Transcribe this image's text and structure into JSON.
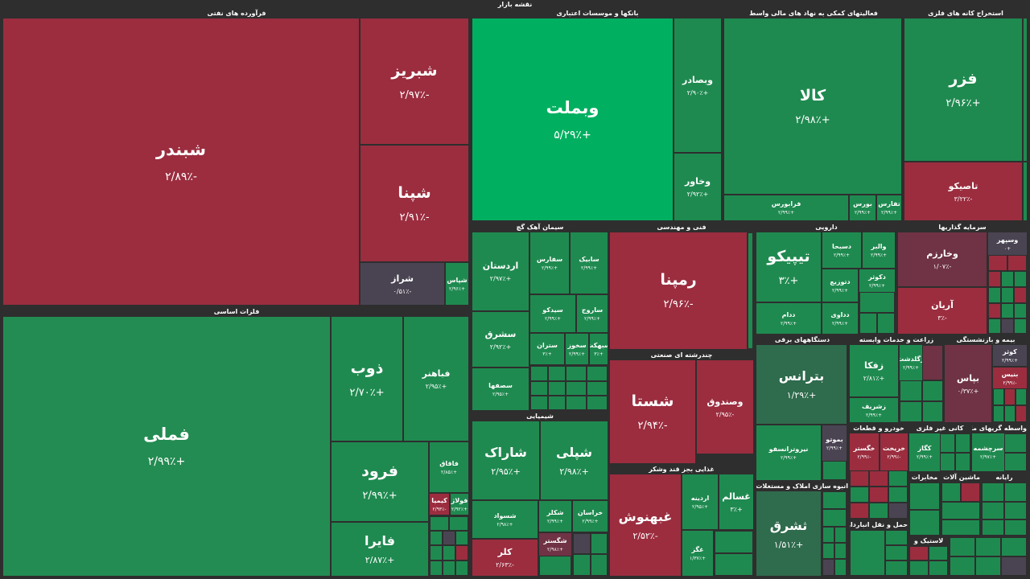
{
  "title": "نقشه بازار",
  "sectors": {
    "oil": "فرآورده های نفتی",
    "banks": "بانکها و موسسات اعتباری",
    "financial": "فعالیتهای کمکی به نهاد های مالی واسط",
    "metal_mining": "استخراج کانه های فلزی",
    "basic_metals": "فلزات اساسی",
    "cement": "سیمان آهک گچ",
    "engineering": "فنی و مهندسی",
    "pharma": "دارویی",
    "investments": "سرمایه گذاریها",
    "multi_industry": "چندرشته ای صنعتی",
    "chemicals": "شیمیایی",
    "food": "غذایی بجز قند وشکر",
    "electric": "دستگاههای برقی",
    "agriculture": "زراعت و خدمات وابسته",
    "insurance": "بیمه و بازنشستگی",
    "auto": "خودرو و قطعات",
    "nonmetal_minerals": "کانی غیر فلزی",
    "financial_intermediaries": "واسطه گریهای مالی و",
    "real_estate": "انبوه سازی املاک و مستغلات",
    "telecom": "مخابرات",
    "machinery": "ماشین آلات و",
    "computer": "رایانه",
    "transport": "حمل و نقل انبارداری و",
    "rubber": "لاستیک و"
  },
  "tiles": {
    "shabandar": {
      "symbol": "شبندر",
      "change": "-۲/۸۹٪"
    },
    "shabriz": {
      "symbol": "شبریز",
      "change": "-۲/۹۷٪"
    },
    "shepna": {
      "symbol": "شپنا",
      "change": "-۲/۹۱٪"
    },
    "shiraz": {
      "symbol": "شراز",
      "change": "-۰/۵۱٪"
    },
    "shepas": {
      "symbol": "شپاس",
      "change": "+۲/۹۶٪"
    },
    "vabmellat": {
      "symbol": "وبملت",
      "change": "+۵/۲۹٪"
    },
    "vebsader": {
      "symbol": "وبصادر",
      "change": "+۲/۹۰٪"
    },
    "vkhavar": {
      "symbol": "وخاور",
      "change": "+۲/۹۲٪"
    },
    "kala": {
      "symbol": "کالا",
      "change": "+۲/۹۸٪"
    },
    "farabourse": {
      "symbol": "فرابورس",
      "change": "+۲/۹۹٪"
    },
    "bourse": {
      "symbol": "بورس",
      "change": "+۲/۹۹٪"
    },
    "tafars": {
      "symbol": "تفارس",
      "change": "+۲/۹۹٪"
    },
    "fazar": {
      "symbol": "فزر",
      "change": "+۲/۹۶٪"
    },
    "tasiko": {
      "symbol": "تاصیکو",
      "change": "-۳/۲۲٪"
    },
    "fameli": {
      "symbol": "فملی",
      "change": "+۲/۹۹٪"
    },
    "zob": {
      "symbol": "ذوب",
      "change": "+۲/۷۰٪"
    },
    "fabahonar": {
      "symbol": "فباهنر",
      "change": "+۲/۹۵٪"
    },
    "foroud": {
      "symbol": "فرود",
      "change": "+۲/۹۹٪"
    },
    "faghagh": {
      "symbol": "فاقاق",
      "change": "+۲/۸۵٪"
    },
    "faira": {
      "symbol": "فایرا",
      "change": "+۲/۸۷٪"
    },
    "kimia": {
      "symbol": "کیمیا",
      "change": "-۲/۹۳٪"
    },
    "folaz": {
      "symbol": "فولاژ",
      "change": "+۲/۹۲٪"
    },
    "ardestan": {
      "symbol": "اردستان",
      "change": "+۲/۹۷٪"
    },
    "sefars": {
      "symbol": "سفارس",
      "change": "+۲/۹۹٪"
    },
    "sabik": {
      "symbol": "سابیک",
      "change": "+۲/۹۹٪"
    },
    "sesharq": {
      "symbol": "سشرق",
      "change": "+۲/۹۲٪"
    },
    "sidko": {
      "symbol": "سیدکو",
      "change": "+۲/۹۹٪"
    },
    "sarouj": {
      "symbol": "ساروج",
      "change": "+۲/۹۹٪"
    },
    "sesofaha": {
      "symbol": "سصفها",
      "change": "+۲/۹۵٪"
    },
    "setran": {
      "symbol": "ستران",
      "change": "+۳٪"
    },
    "sekhoz": {
      "symbol": "سخوز",
      "change": "+۲/۹۹٪"
    },
    "sebhekt": {
      "symbol": "سبهکت",
      "change": "+۳٪"
    },
    "ramepna": {
      "symbol": "رمپنا",
      "change": "-۲/۹۶٪"
    },
    "tipiko": {
      "symbol": "تیپیکو",
      "change": "+۳٪"
    },
    "dasobha": {
      "symbol": "دسبحا",
      "change": "+۲/۹۹٪"
    },
    "valber": {
      "symbol": "والبر",
      "change": "+۲/۹۹٪"
    },
    "dalor": {
      "symbol": "دلر",
      "change": "+۲/۹۹٪"
    },
    "doturiz": {
      "symbol": "دتوزیع",
      "change": "+۲/۹۹٪"
    },
    "dkosar": {
      "symbol": "دکوثر",
      "change": "+۲/۹۹٪"
    },
    "dadam": {
      "symbol": "ددام",
      "change": "+۲/۹۹٪"
    },
    "dadarou": {
      "symbol": "دداوی",
      "change": "+۲/۹۹٪"
    },
    "vkharazm": {
      "symbol": "وخارزم",
      "change": "-۱/۰۷٪"
    },
    "arian": {
      "symbol": "آریان",
      "change": "-۳٪"
    },
    "vesapa": {
      "symbol": "وسپهر",
      "change": "+۰"
    },
    "shasta": {
      "symbol": "شستا",
      "change": "-۲/۹۴٪"
    },
    "vesandough": {
      "symbol": "وصندوق",
      "change": "-۲/۹۵٪"
    },
    "sharak": {
      "symbol": "شاراک",
      "change": "+۲/۹۵٪"
    },
    "shepli": {
      "symbol": "شپلی",
      "change": "+۲/۹۸٪"
    },
    "shesavad": {
      "symbol": "شسواد",
      "change": "+۲/۹۸٪"
    },
    "shakol": {
      "symbol": "شکلر",
      "change": "+۲/۹۹٪"
    },
    "khorasan": {
      "symbol": "خراسان",
      "change": "+۲/۹۹٪"
    },
    "kalar": {
      "symbol": "کلر",
      "change": "-۲/۶۳٪"
    },
    "shegostar": {
      "symbol": "شگستر",
      "change": "+۲/۹۸٪"
    },
    "ghebnoush": {
      "symbol": "غبهنوش",
      "change": "-۲/۵۲٪"
    },
    "ardineh": {
      "symbol": "اردینه",
      "change": "+۲/۹۵٪"
    },
    "ghesalam": {
      "symbol": "غسالم",
      "change": "+۳٪"
    },
    "ghegaz": {
      "symbol": "غگز",
      "change": "+۱/۳۷٪"
    },
    "batrans": {
      "symbol": "بترانس",
      "change": "+۱/۲۹٪"
    },
    "niroutransfo": {
      "symbol": "نیروترانسفو",
      "change": "+۲/۹۹٪"
    },
    "bemoto": {
      "symbol": "بموتو",
      "change": "+۲/۹۹٪"
    },
    "zakoka": {
      "symbol": "زفکا",
      "change": "+۲/۸۱٪"
    },
    "zagaldasht": {
      "symbol": "زگلدشت",
      "change": "+۲/۹۹٪"
    },
    "zeshrifi": {
      "symbol": "زشریف",
      "change": "+۲/۹۹٪"
    },
    "bapas": {
      "symbol": "بپاس",
      "change": "+۰/۳۷٪"
    },
    "kowsar": {
      "symbol": "کوثر",
      "change": "+۲/۹۹٪"
    },
    "baniz": {
      "symbol": "بنیس",
      "change": "-۲/۹۹٪"
    },
    "khodro_a": {
      "symbol": "خگستر",
      "change": "-۲/۹۹٪"
    },
    "khodro_b": {
      "symbol": "خریخت",
      "change": "-۲/۹۹٪"
    },
    "tashraq": {
      "symbol": "ثشرق",
      "change": "+۱/۵۱٪"
    },
    "kegaz": {
      "symbol": "کگاز",
      "change": "+۲/۹۹٪"
    },
    "vesharq": {
      "symbol": "سرچشمه",
      "change": "+۲/۹۷٪"
    }
  }
}
